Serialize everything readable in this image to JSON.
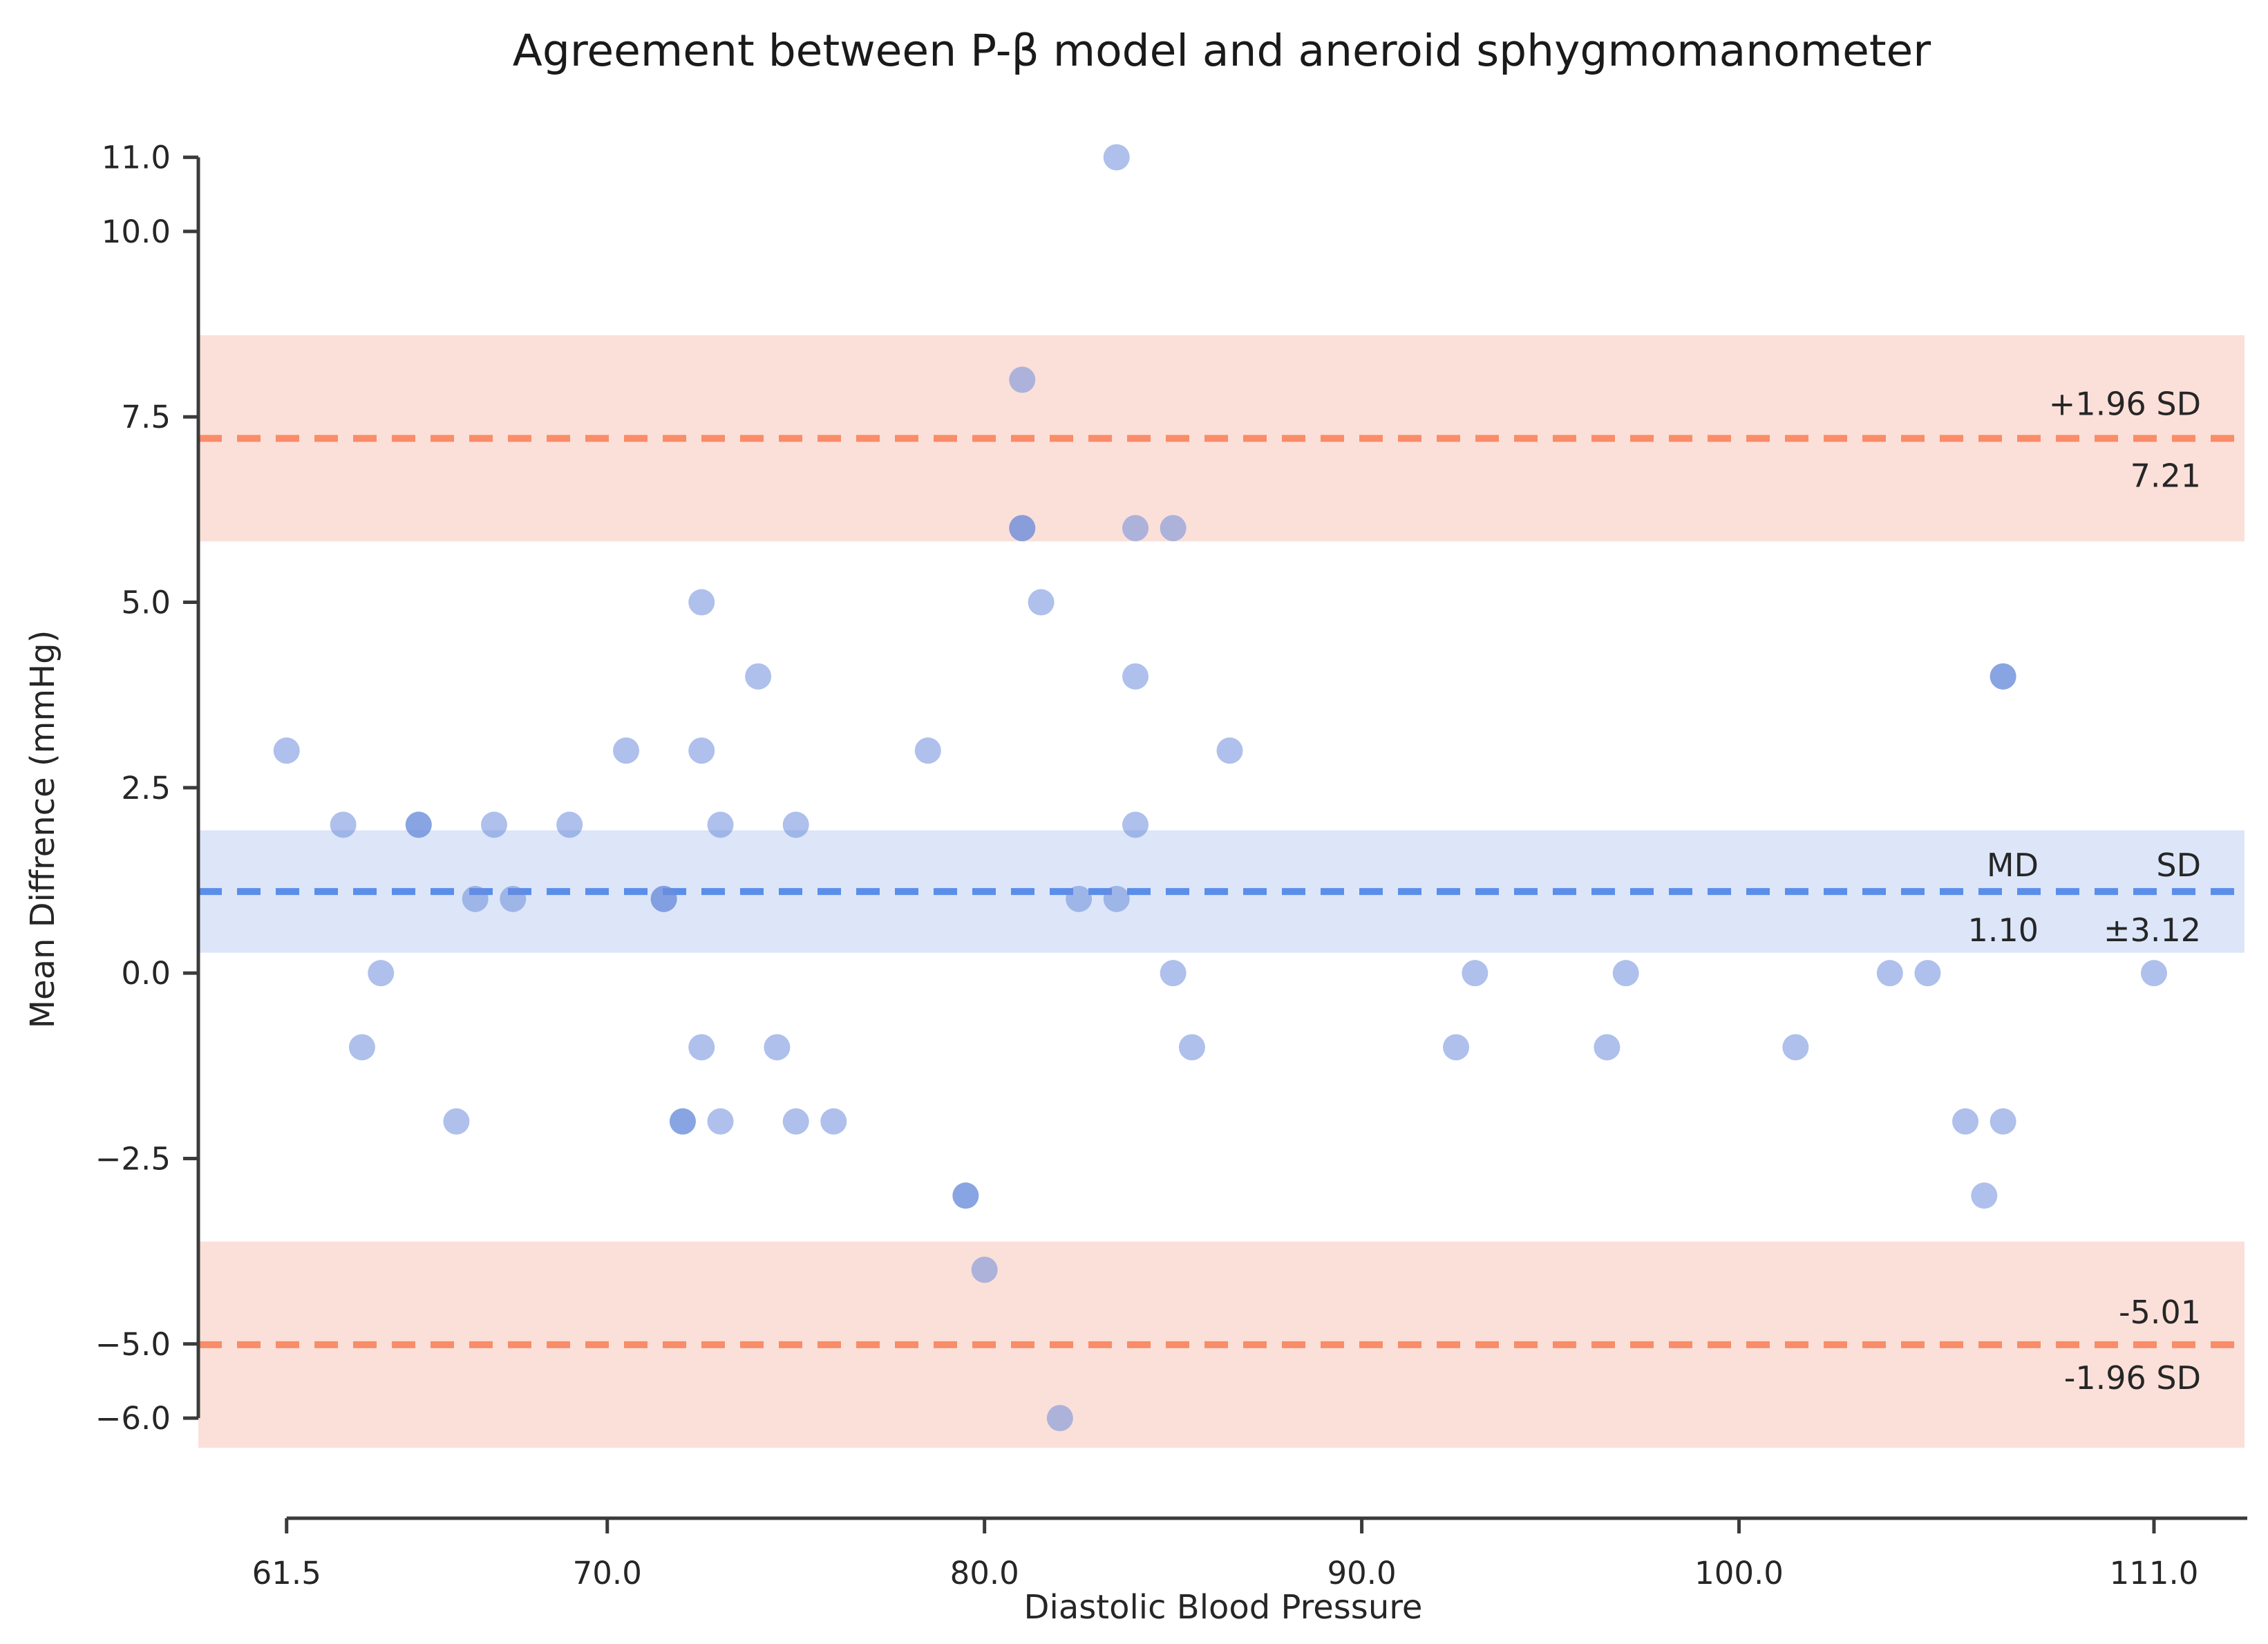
{
  "title": "Agreement between P-β model and aneroid sphygmomanometer",
  "chart_data": {
    "type": "scatter",
    "title": "Agreement between P-β model and aneroid sphygmomanometer",
    "xlabel": "Diastolic Blood Pressure",
    "ylabel": "Mean Diffrence (mmHg)",
    "xlim": [
      59.16,
      113.4
    ],
    "ylim": [
      -7.35,
      11.35
    ],
    "grid": false,
    "x_ticks": [
      61.5,
      70,
      80,
      90,
      100,
      111
    ],
    "x_tick_labels": [
      "61.5",
      "70.0",
      "80.0",
      "90.0",
      "100.0",
      "111.0"
    ],
    "y_ticks": [
      11,
      10,
      7.5,
      5,
      2.5,
      0,
      -2.5,
      -5,
      -6
    ],
    "y_tick_labels": [
      "11.0",
      "10.0",
      "7.5",
      "5.0",
      "2.5",
      "0.0",
      "−2.5",
      "−5.0",
      "−6.0"
    ],
    "marker_color": "#6c8cda",
    "marker_alpha": 0.55,
    "marker_radius": 19,
    "md_line": {
      "value": 1.1,
      "ci": 0.825,
      "line_color": "#5b8deb",
      "band_color": "#dce6f8",
      "col1_label": "MD",
      "col2_label": "SD",
      "col1_value": "1.10",
      "col2_value": "±3.12"
    },
    "upper_loa": {
      "value": 7.21,
      "ci": 1.39,
      "label": "+1.96 SD",
      "value_label": "7.21"
    },
    "lower_loa": {
      "value": -5.01,
      "ci": 1.39,
      "label": "-1.96 SD",
      "value_label": "-5.01"
    },
    "loa_line_color": "#f98c69",
    "loa_band_color": "#fbe0d9",
    "points": [
      [
        83.5,
        11,
        1
      ],
      [
        81,
        8,
        1
      ],
      [
        81,
        6,
        2
      ],
      [
        84,
        6,
        1
      ],
      [
        85,
        6,
        1
      ],
      [
        72.5,
        5,
        1
      ],
      [
        81.5,
        5,
        1
      ],
      [
        74,
        4,
        1
      ],
      [
        84,
        4,
        1
      ],
      [
        107,
        4,
        2
      ],
      [
        61.5,
        3,
        1
      ],
      [
        70.5,
        3,
        1
      ],
      [
        72.5,
        3,
        1
      ],
      [
        78.5,
        3,
        1
      ],
      [
        86.5,
        3,
        1
      ],
      [
        63,
        2,
        1
      ],
      [
        65,
        2,
        2
      ],
      [
        67,
        2,
        1
      ],
      [
        69,
        2,
        1
      ],
      [
        73,
        2,
        1
      ],
      [
        75,
        2,
        1
      ],
      [
        84,
        2,
        1
      ],
      [
        66.5,
        1,
        1
      ],
      [
        67.5,
        1,
        1
      ],
      [
        71.5,
        1,
        2
      ],
      [
        82.5,
        1,
        1
      ],
      [
        83.5,
        1,
        1
      ],
      [
        64,
        0,
        1
      ],
      [
        85,
        0,
        1
      ],
      [
        93,
        0,
        1
      ],
      [
        97,
        0,
        1
      ],
      [
        104,
        0,
        1
      ],
      [
        105,
        0,
        1
      ],
      [
        111,
        0,
        1
      ],
      [
        63.5,
        -1,
        1
      ],
      [
        72.5,
        -1,
        1
      ],
      [
        74.5,
        -1,
        1
      ],
      [
        85.5,
        -1,
        1
      ],
      [
        92.5,
        -1,
        1
      ],
      [
        96.5,
        -1,
        1
      ],
      [
        101.5,
        -1,
        1
      ],
      [
        66,
        -2,
        1
      ],
      [
        72,
        -2,
        2
      ],
      [
        73,
        -2,
        1
      ],
      [
        75,
        -2,
        1
      ],
      [
        76,
        -2,
        1
      ],
      [
        106,
        -2,
        1
      ],
      [
        107,
        -2,
        1
      ],
      [
        79.5,
        -3,
        2
      ],
      [
        106.5,
        -3,
        1
      ],
      [
        80,
        -4,
        1
      ],
      [
        82,
        -6,
        1
      ]
    ]
  }
}
